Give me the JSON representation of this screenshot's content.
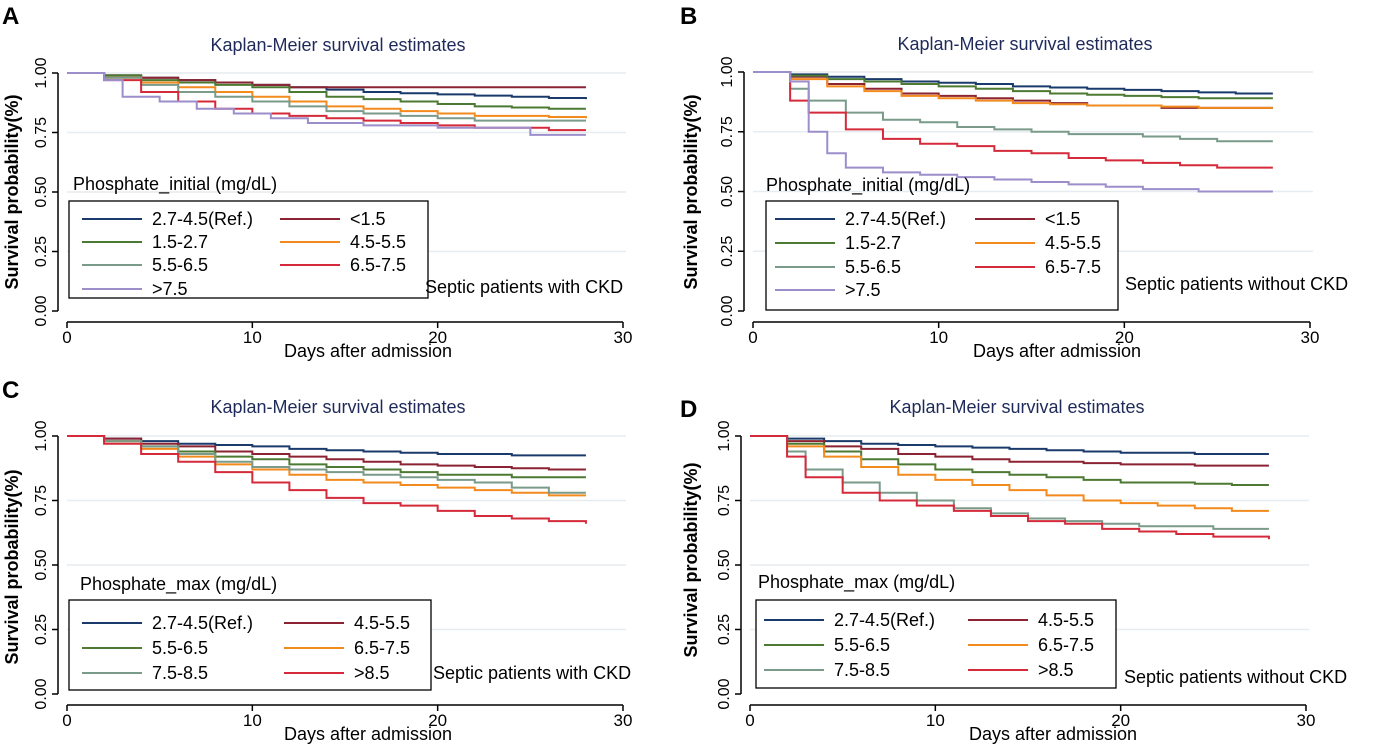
{
  "colors": {
    "title": "#1f2a5a",
    "axis": "#000000",
    "grid": "#e6ecef",
    "legend_border": "#000000"
  },
  "chart_data": [
    {
      "type": "line",
      "panel_label": "A",
      "title": "Kaplan-Meier survival estimates",
      "xlabel": "Days after admission",
      "ylabel": "Survival probability(%)",
      "xlim": [
        0,
        30
      ],
      "ylim": [
        0,
        1
      ],
      "xticks": [
        "0",
        "10",
        "20",
        "30"
      ],
      "yticks": [
        "0.00",
        "0.25",
        "0.50",
        "0.75",
        "1.00"
      ],
      "legend_title": "Phosphate_initial (mg/dL)",
      "annotation": "Septic patients with CKD",
      "series": [
        {
          "name": "2.7-4.5(Ref.)",
          "color": "#1a3a6b",
          "x": [
            0,
            2,
            4,
            6,
            8,
            10,
            12,
            14,
            16,
            18,
            20,
            22,
            24,
            26,
            28
          ],
          "y": [
            1.0,
            0.99,
            0.98,
            0.97,
            0.96,
            0.95,
            0.94,
            0.93,
            0.92,
            0.915,
            0.91,
            0.905,
            0.9,
            0.895,
            0.89
          ]
        },
        {
          "name": "<1.5",
          "color": "#8b2332",
          "x": [
            0,
            2,
            4,
            6,
            8,
            10,
            12,
            14,
            16,
            18,
            20,
            22,
            24,
            26,
            28
          ],
          "y": [
            1.0,
            0.99,
            0.98,
            0.97,
            0.96,
            0.95,
            0.94,
            0.94,
            0.94,
            0.94,
            0.94,
            0.94,
            0.94,
            0.94,
            0.94
          ]
        },
        {
          "name": "1.5-2.7",
          "color": "#4c7a32",
          "x": [
            0,
            2,
            4,
            6,
            8,
            10,
            12,
            14,
            16,
            18,
            20,
            22,
            24,
            26,
            28
          ],
          "y": [
            1.0,
            0.99,
            0.97,
            0.96,
            0.95,
            0.94,
            0.92,
            0.9,
            0.89,
            0.88,
            0.87,
            0.86,
            0.855,
            0.85,
            0.85
          ]
        },
        {
          "name": "4.5-5.5",
          "color": "#f28a1e",
          "x": [
            0,
            2,
            4,
            6,
            8,
            10,
            12,
            14,
            16,
            18,
            20,
            22,
            24,
            26,
            28
          ],
          "y": [
            1.0,
            0.98,
            0.96,
            0.94,
            0.92,
            0.9,
            0.88,
            0.86,
            0.85,
            0.84,
            0.83,
            0.82,
            0.82,
            0.815,
            0.81
          ]
        },
        {
          "name": "5.5-6.5",
          "color": "#7a9a8a",
          "x": [
            0,
            2,
            4,
            6,
            8,
            10,
            12,
            14,
            16,
            18,
            20,
            22,
            24,
            26,
            28
          ],
          "y": [
            1.0,
            0.98,
            0.95,
            0.92,
            0.9,
            0.88,
            0.86,
            0.84,
            0.83,
            0.82,
            0.81,
            0.8,
            0.8,
            0.8,
            0.8
          ]
        },
        {
          "name": "6.5-7.5",
          "color": "#d42a3a",
          "x": [
            0,
            2,
            4,
            6,
            8,
            10,
            12,
            14,
            16,
            18,
            20,
            22,
            24,
            26,
            28
          ],
          "y": [
            1.0,
            0.97,
            0.92,
            0.88,
            0.85,
            0.83,
            0.82,
            0.81,
            0.8,
            0.79,
            0.78,
            0.77,
            0.77,
            0.76,
            0.76
          ]
        },
        {
          "name": ">7.5",
          "color": "#9c8ecb",
          "x": [
            0,
            2,
            3,
            5,
            7,
            9,
            11,
            13,
            16,
            18,
            20,
            22,
            24,
            25,
            28
          ],
          "y": [
            1.0,
            0.97,
            0.9,
            0.88,
            0.85,
            0.83,
            0.81,
            0.79,
            0.78,
            0.78,
            0.77,
            0.77,
            0.77,
            0.74,
            0.74
          ]
        }
      ]
    },
    {
      "type": "line",
      "panel_label": "B",
      "title": "Kaplan-Meier survival estimates",
      "xlabel": "Days after admission",
      "ylabel": "Survival probability(%)",
      "xlim": [
        0,
        30
      ],
      "ylim": [
        0,
        1
      ],
      "xticks": [
        "0",
        "10",
        "20",
        "30"
      ],
      "yticks": [
        "0.00",
        "0.25",
        "0.50",
        "0.75",
        "1.00"
      ],
      "legend_title": "Phosphate_initial (mg/dL)",
      "annotation": "Septic patients without CKD",
      "series": [
        {
          "name": "2.7-4.5(Ref.)",
          "color": "#1a3a6b",
          "x": [
            0,
            2,
            4,
            6,
            8,
            10,
            12,
            14,
            16,
            18,
            20,
            22,
            24,
            26,
            28
          ],
          "y": [
            1.0,
            0.99,
            0.98,
            0.97,
            0.96,
            0.955,
            0.95,
            0.94,
            0.935,
            0.93,
            0.925,
            0.92,
            0.915,
            0.91,
            0.91
          ]
        },
        {
          "name": "<1.5",
          "color": "#8b2332",
          "x": [
            0,
            2,
            4,
            6,
            8,
            10,
            12,
            14,
            16,
            18,
            20,
            22,
            24,
            26,
            28
          ],
          "y": [
            1.0,
            0.98,
            0.95,
            0.93,
            0.91,
            0.9,
            0.89,
            0.88,
            0.87,
            0.86,
            0.86,
            0.85,
            0.85,
            0.85,
            0.85
          ]
        },
        {
          "name": "1.5-2.7",
          "color": "#4c7a32",
          "x": [
            0,
            2,
            4,
            6,
            8,
            10,
            12,
            14,
            16,
            18,
            20,
            22,
            24,
            26,
            28
          ],
          "y": [
            1.0,
            0.985,
            0.97,
            0.96,
            0.95,
            0.94,
            0.93,
            0.92,
            0.91,
            0.905,
            0.9,
            0.895,
            0.89,
            0.89,
            0.89
          ]
        },
        {
          "name": "4.5-5.5",
          "color": "#f28a1e",
          "x": [
            0,
            2,
            4,
            6,
            8,
            10,
            12,
            14,
            16,
            18,
            20,
            22,
            24,
            26,
            28
          ],
          "y": [
            1.0,
            0.97,
            0.94,
            0.92,
            0.9,
            0.89,
            0.88,
            0.87,
            0.865,
            0.86,
            0.86,
            0.855,
            0.85,
            0.85,
            0.85
          ]
        },
        {
          "name": "5.5-6.5",
          "color": "#7a9a8a",
          "x": [
            0,
            2,
            3,
            5,
            7,
            9,
            11,
            13,
            15,
            17,
            19,
            21,
            23,
            25,
            28
          ],
          "y": [
            1.0,
            0.93,
            0.88,
            0.83,
            0.8,
            0.79,
            0.77,
            0.76,
            0.75,
            0.74,
            0.74,
            0.73,
            0.72,
            0.71,
            0.71
          ]
        },
        {
          "name": "6.5-7.5",
          "color": "#d42a3a",
          "x": [
            0,
            2,
            3,
            5,
            7,
            9,
            11,
            13,
            15,
            17,
            19,
            21,
            23,
            25,
            28
          ],
          "y": [
            1.0,
            0.88,
            0.83,
            0.76,
            0.72,
            0.7,
            0.69,
            0.67,
            0.66,
            0.64,
            0.63,
            0.62,
            0.61,
            0.6,
            0.6
          ]
        },
        {
          "name": ">7.5",
          "color": "#9c8ecb",
          "x": [
            0,
            2,
            3,
            4,
            5,
            7,
            9,
            11,
            13,
            15,
            17,
            19,
            21,
            24,
            28
          ],
          "y": [
            1.0,
            0.96,
            0.75,
            0.66,
            0.6,
            0.58,
            0.57,
            0.56,
            0.55,
            0.54,
            0.53,
            0.52,
            0.51,
            0.5,
            0.5
          ]
        }
      ]
    },
    {
      "type": "line",
      "panel_label": "C",
      "title": "Kaplan-Meier survival estimates",
      "xlabel": "Days after admission",
      "ylabel": "Survival probability(%)",
      "xlim": [
        0,
        30
      ],
      "ylim": [
        0,
        1
      ],
      "xticks": [
        "0",
        "10",
        "20",
        "30"
      ],
      "yticks": [
        "0.00",
        "0.25",
        "0.50",
        "0.75",
        "1.00"
      ],
      "legend_title": "Phosphate_max (mg/dL)",
      "annotation": "Septic patients with CKD",
      "series": [
        {
          "name": "2.7-4.5(Ref.)",
          "color": "#1a3a6b",
          "x": [
            0,
            2,
            4,
            6,
            8,
            10,
            12,
            14,
            16,
            18,
            20,
            22,
            24,
            26,
            28
          ],
          "y": [
            1.0,
            0.99,
            0.98,
            0.97,
            0.965,
            0.96,
            0.95,
            0.945,
            0.94,
            0.935,
            0.93,
            0.93,
            0.925,
            0.925,
            0.925
          ]
        },
        {
          "name": "4.5-5.5",
          "color": "#8b2332",
          "x": [
            0,
            2,
            4,
            6,
            8,
            10,
            12,
            14,
            16,
            18,
            20,
            22,
            24,
            26,
            28
          ],
          "y": [
            1.0,
            0.99,
            0.97,
            0.96,
            0.94,
            0.93,
            0.92,
            0.91,
            0.9,
            0.89,
            0.885,
            0.88,
            0.875,
            0.87,
            0.87
          ]
        },
        {
          "name": "5.5-6.5",
          "color": "#4c7a32",
          "x": [
            0,
            2,
            4,
            6,
            8,
            10,
            12,
            14,
            16,
            18,
            20,
            22,
            24,
            26,
            28
          ],
          "y": [
            1.0,
            0.98,
            0.96,
            0.94,
            0.92,
            0.91,
            0.89,
            0.88,
            0.87,
            0.86,
            0.85,
            0.85,
            0.84,
            0.84,
            0.84
          ]
        },
        {
          "name": "6.5-7.5",
          "color": "#f28a1e",
          "x": [
            0,
            2,
            4,
            6,
            8,
            10,
            12,
            14,
            16,
            18,
            20,
            22,
            24,
            26,
            28
          ],
          "y": [
            1.0,
            0.98,
            0.95,
            0.92,
            0.89,
            0.87,
            0.85,
            0.83,
            0.82,
            0.81,
            0.8,
            0.79,
            0.78,
            0.77,
            0.77
          ]
        },
        {
          "name": "7.5-8.5",
          "color": "#7a9a8a",
          "x": [
            0,
            2,
            4,
            6,
            8,
            10,
            12,
            14,
            16,
            18,
            20,
            22,
            24,
            26,
            28
          ],
          "y": [
            1.0,
            0.98,
            0.96,
            0.93,
            0.9,
            0.88,
            0.87,
            0.86,
            0.85,
            0.84,
            0.83,
            0.82,
            0.8,
            0.78,
            0.78
          ]
        },
        {
          "name": ">8.5",
          "color": "#d42a3a",
          "x": [
            0,
            2,
            4,
            6,
            8,
            10,
            12,
            14,
            16,
            18,
            20,
            22,
            24,
            26,
            28
          ],
          "y": [
            1.0,
            0.97,
            0.93,
            0.9,
            0.86,
            0.82,
            0.79,
            0.76,
            0.74,
            0.73,
            0.71,
            0.69,
            0.68,
            0.67,
            0.66
          ]
        }
      ]
    },
    {
      "type": "line",
      "panel_label": "D",
      "title": "Kaplan-Meier survival estimates",
      "xlabel": "Days after admission",
      "ylabel": "Survival probability(%)",
      "xlim": [
        0,
        30
      ],
      "ylim": [
        0,
        1
      ],
      "xticks": [
        "0",
        "10",
        "20",
        "30"
      ],
      "yticks": [
        "0.00",
        "0.25",
        "0.50",
        "0.75",
        "1.00"
      ],
      "legend_title": "Phosphate_max (mg/dL)",
      "annotation": "Septic patients without CKD",
      "series": [
        {
          "name": "2.7-4.5(Ref.)",
          "color": "#1a3a6b",
          "x": [
            0,
            2,
            4,
            6,
            8,
            10,
            12,
            14,
            16,
            18,
            20,
            22,
            24,
            26,
            28
          ],
          "y": [
            1.0,
            0.99,
            0.98,
            0.97,
            0.965,
            0.96,
            0.955,
            0.95,
            0.945,
            0.94,
            0.935,
            0.935,
            0.93,
            0.93,
            0.93
          ]
        },
        {
          "name": "4.5-5.5",
          "color": "#8b2332",
          "x": [
            0,
            2,
            4,
            6,
            8,
            10,
            12,
            14,
            16,
            18,
            20,
            22,
            24,
            26,
            28
          ],
          "y": [
            1.0,
            0.98,
            0.96,
            0.95,
            0.93,
            0.92,
            0.91,
            0.9,
            0.9,
            0.895,
            0.89,
            0.89,
            0.885,
            0.885,
            0.885
          ]
        },
        {
          "name": "5.5-6.5",
          "color": "#4c7a32",
          "x": [
            0,
            2,
            4,
            6,
            8,
            10,
            12,
            14,
            16,
            18,
            20,
            22,
            24,
            26,
            28
          ],
          "y": [
            1.0,
            0.97,
            0.94,
            0.91,
            0.89,
            0.87,
            0.86,
            0.85,
            0.84,
            0.83,
            0.82,
            0.82,
            0.815,
            0.81,
            0.81
          ]
        },
        {
          "name": "6.5-7.5",
          "color": "#f28a1e",
          "x": [
            0,
            2,
            4,
            6,
            8,
            10,
            12,
            14,
            16,
            18,
            20,
            22,
            24,
            26,
            28
          ],
          "y": [
            1.0,
            0.96,
            0.92,
            0.88,
            0.85,
            0.83,
            0.81,
            0.79,
            0.77,
            0.75,
            0.74,
            0.73,
            0.72,
            0.71,
            0.71
          ]
        },
        {
          "name": "7.5-8.5",
          "color": "#7a9a8a",
          "x": [
            0,
            2,
            3,
            5,
            7,
            9,
            11,
            13,
            15,
            17,
            19,
            21,
            23,
            25,
            28
          ],
          "y": [
            1.0,
            0.94,
            0.87,
            0.82,
            0.78,
            0.75,
            0.72,
            0.7,
            0.68,
            0.67,
            0.66,
            0.65,
            0.65,
            0.64,
            0.64
          ]
        },
        {
          "name": ">8.5",
          "color": "#d42a3a",
          "x": [
            0,
            2,
            3,
            5,
            7,
            9,
            11,
            13,
            15,
            17,
            19,
            21,
            23,
            25,
            28
          ],
          "y": [
            1.0,
            0.92,
            0.84,
            0.78,
            0.75,
            0.73,
            0.71,
            0.69,
            0.67,
            0.66,
            0.64,
            0.63,
            0.62,
            0.61,
            0.6
          ]
        }
      ]
    }
  ]
}
